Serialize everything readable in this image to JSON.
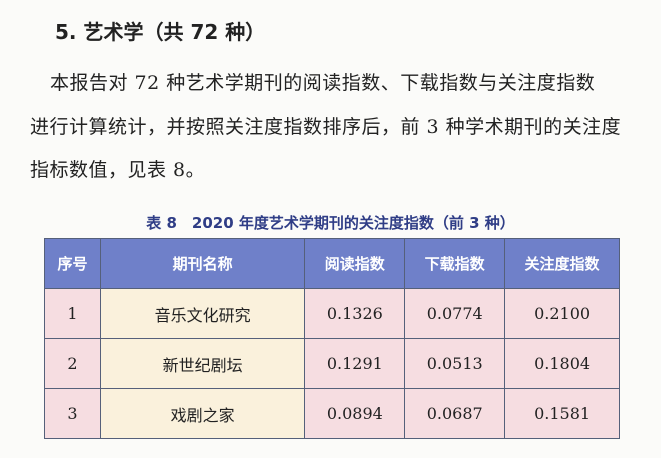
{
  "heading": "5. 艺术学（共 72 种）",
  "paragraph": [
    "本报告对 72 种艺术学期刊的阅读指数、下载指数与关注度指数",
    "进行计算统计，并按照关注度指数排序后，前 3 种学术期刊的关注度",
    "指标数值，见表 8。"
  ],
  "table": {
    "caption": "表 8　2020 年度艺术学期刊的关注度指数（前 3 种）",
    "headers": [
      "序号",
      "期刊名称",
      "阅读指数",
      "下载指数",
      "关注度指数"
    ],
    "rows": [
      [
        "1",
        "音乐文化研究",
        "0.1326",
        "0.0774",
        "0.2100"
      ],
      [
        "2",
        "新世纪剧坛",
        "0.1291",
        "0.0513",
        "0.1804"
      ],
      [
        "3",
        "戏剧之家",
        "0.0894",
        "0.0687",
        "0.1581"
      ]
    ]
  }
}
